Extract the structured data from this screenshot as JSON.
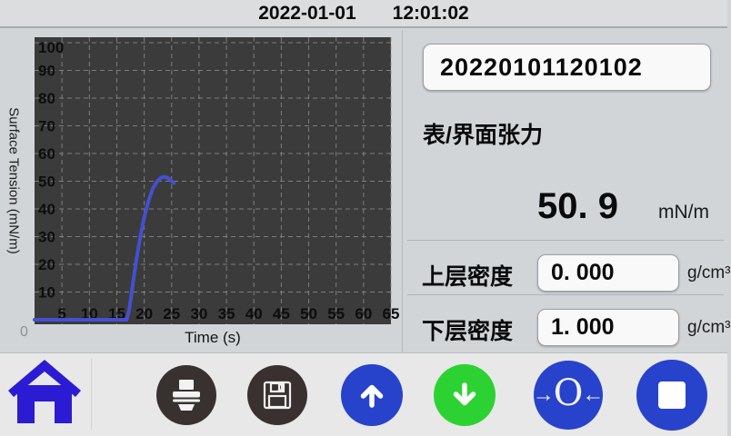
{
  "header": {
    "date": "2022-01-01",
    "time": "12:01:02"
  },
  "chart_data": {
    "type": "line",
    "title": "",
    "xlabel": "Time  (s)",
    "ylabel": "Surface Tension  (mN/m)",
    "origin_label": "0",
    "xlim": [
      0,
      65
    ],
    "ylim": [
      0,
      100
    ],
    "x_ticks": [
      5,
      10,
      15,
      20,
      25,
      30,
      35,
      40,
      45,
      50,
      55,
      60,
      65
    ],
    "y_ticks": [
      10,
      20,
      30,
      40,
      50,
      60,
      70,
      80,
      90,
      100
    ],
    "grid": true,
    "legend": false,
    "plot_bg": "#3B3B3B",
    "grid_color": "#8F8F8F",
    "series": [
      {
        "name": "surface-tension",
        "color": "#4450D0",
        "points": [
          [
            0,
            0
          ],
          [
            16.8,
            0
          ],
          [
            17.2,
            3
          ],
          [
            17.6,
            8
          ],
          [
            18,
            14
          ],
          [
            18.6,
            22
          ],
          [
            19.2,
            29
          ],
          [
            20,
            37
          ],
          [
            20.8,
            43
          ],
          [
            21.6,
            47.5
          ],
          [
            22.4,
            50
          ],
          [
            23,
            51.2
          ],
          [
            23.6,
            51.6
          ],
          [
            24.2,
            51.3
          ],
          [
            24.8,
            50.4
          ],
          [
            25.4,
            49.3
          ]
        ]
      }
    ]
  },
  "panel": {
    "sample_id": "20220101120102",
    "measure_label": "表/界面张力",
    "value": "50. 9",
    "value_unit": "mN/m",
    "rows": [
      {
        "label": "上层密度",
        "value": "0. 000",
        "unit": "g/cm³"
      },
      {
        "label": "下层密度",
        "value": "1. 000",
        "unit": "g/cm³"
      }
    ]
  },
  "toolbar": {
    "zero_left": "→",
    "zero_o": "O",
    "zero_right": "←",
    "colors": {
      "home_blue": "#2B1CD4",
      "button_blue": "#2742CB",
      "button_green": "#2CD232",
      "button_dark": "#393130"
    }
  }
}
